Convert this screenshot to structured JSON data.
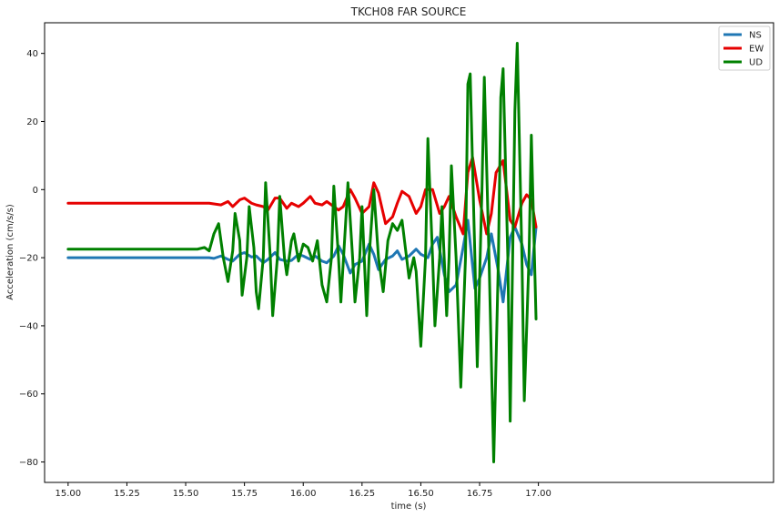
{
  "chart_data": {
    "type": "line",
    "title": "TKCH08 FAR SOURCE",
    "xlabel": "time (s)",
    "ylabel": "Acceleration (cm/s/s)",
    "xlim": [
      14.9,
      18.0
    ],
    "ylim": [
      -86,
      49
    ],
    "xticks": [
      15.0,
      15.25,
      15.5,
      15.75,
      16.0,
      16.25,
      16.5,
      16.75,
      17.0
    ],
    "xtick_labels": [
      "15.00",
      "15.25",
      "15.50",
      "15.75",
      "16.00",
      "16.25",
      "16.50",
      "16.75",
      "17.00"
    ],
    "yticks": [
      -80,
      -60,
      -40,
      -20,
      0,
      20,
      40
    ],
    "ytick_labels": [
      "−80",
      "−60",
      "−40",
      "−20",
      "0",
      "20",
      "40"
    ],
    "grid": false,
    "legend_position": "top-right",
    "series": [
      {
        "name": "NS",
        "color": "#1f77b4",
        "points": [
          [
            15.0,
            -20.0
          ],
          [
            15.1,
            -20.0
          ],
          [
            15.2,
            -20.0
          ],
          [
            15.3,
            -20.0
          ],
          [
            15.4,
            -20.0
          ],
          [
            15.5,
            -20.0
          ],
          [
            15.6,
            -20.0
          ],
          [
            15.62,
            -20.2
          ],
          [
            15.65,
            -19.5
          ],
          [
            15.68,
            -20.5
          ],
          [
            15.7,
            -21.0
          ],
          [
            15.73,
            -19.0
          ],
          [
            15.75,
            -18.5
          ],
          [
            15.78,
            -19.8
          ],
          [
            15.8,
            -19.5
          ],
          [
            15.83,
            -21.5
          ],
          [
            15.85,
            -20.5
          ],
          [
            15.88,
            -18.5
          ],
          [
            15.9,
            -20.5
          ],
          [
            15.93,
            -21.0
          ],
          [
            15.95,
            -20.8
          ],
          [
            15.98,
            -19.0
          ],
          [
            16.0,
            -19.5
          ],
          [
            16.03,
            -20.5
          ],
          [
            16.05,
            -19.5
          ],
          [
            16.08,
            -21.0
          ],
          [
            16.1,
            -21.5
          ],
          [
            16.13,
            -19.5
          ],
          [
            16.15,
            -16.5
          ],
          [
            16.17,
            -19.0
          ],
          [
            16.2,
            -24.5
          ],
          [
            16.22,
            -22.0
          ],
          [
            16.25,
            -21.0
          ],
          [
            16.28,
            -16.0
          ],
          [
            16.3,
            -19.0
          ],
          [
            16.32,
            -23.5
          ],
          [
            16.35,
            -20.5
          ],
          [
            16.38,
            -19.5
          ],
          [
            16.4,
            -18.0
          ],
          [
            16.42,
            -20.5
          ],
          [
            16.45,
            -19.5
          ],
          [
            16.48,
            -17.5
          ],
          [
            16.5,
            -19.0
          ],
          [
            16.53,
            -20.0
          ],
          [
            16.55,
            -16.0
          ],
          [
            16.57,
            -14.0
          ],
          [
            16.6,
            -25.0
          ],
          [
            16.62,
            -30.0
          ],
          [
            16.65,
            -28.0
          ],
          [
            16.68,
            -17.0
          ],
          [
            16.7,
            -9.0
          ],
          [
            16.73,
            -29.0
          ],
          [
            16.75,
            -26.0
          ],
          [
            16.78,
            -20.0
          ],
          [
            16.8,
            -13.0
          ],
          [
            16.83,
            -24.0
          ],
          [
            16.85,
            -33.0
          ],
          [
            16.88,
            -14.0
          ],
          [
            16.9,
            -11.0
          ],
          [
            16.93,
            -16.0
          ],
          [
            16.95,
            -22.0
          ],
          [
            16.97,
            -25.0
          ],
          [
            16.99,
            -11.0
          ]
        ]
      },
      {
        "name": "EW",
        "color": "#e60000",
        "points": [
          [
            15.0,
            -4.0
          ],
          [
            15.1,
            -4.0
          ],
          [
            15.2,
            -4.0
          ],
          [
            15.3,
            -4.0
          ],
          [
            15.4,
            -4.0
          ],
          [
            15.5,
            -4.0
          ],
          [
            15.6,
            -4.0
          ],
          [
            15.65,
            -4.5
          ],
          [
            15.68,
            -3.5
          ],
          [
            15.7,
            -5.0
          ],
          [
            15.73,
            -3.0
          ],
          [
            15.75,
            -2.5
          ],
          [
            15.78,
            -4.0
          ],
          [
            15.8,
            -4.5
          ],
          [
            15.83,
            -5.0
          ],
          [
            15.85,
            -6.0
          ],
          [
            15.88,
            -2.5
          ],
          [
            15.9,
            -2.5
          ],
          [
            15.93,
            -5.5
          ],
          [
            15.95,
            -4.0
          ],
          [
            15.98,
            -5.0
          ],
          [
            16.0,
            -4.0
          ],
          [
            16.03,
            -2.0
          ],
          [
            16.05,
            -4.0
          ],
          [
            16.08,
            -4.5
          ],
          [
            16.1,
            -3.5
          ],
          [
            16.13,
            -5.0
          ],
          [
            16.15,
            -6.0
          ],
          [
            16.17,
            -5.0
          ],
          [
            16.2,
            0.0
          ],
          [
            16.22,
            -2.5
          ],
          [
            16.25,
            -7.0
          ],
          [
            16.28,
            -5.0
          ],
          [
            16.3,
            2.0
          ],
          [
            16.32,
            -1.0
          ],
          [
            16.35,
            -10.0
          ],
          [
            16.38,
            -8.0
          ],
          [
            16.4,
            -4.0
          ],
          [
            16.42,
            -0.5
          ],
          [
            16.45,
            -2.0
          ],
          [
            16.48,
            -7.0
          ],
          [
            16.5,
            -5.0
          ],
          [
            16.52,
            0.0
          ],
          [
            16.55,
            0.0
          ],
          [
            16.58,
            -7.0
          ],
          [
            16.6,
            -5.0
          ],
          [
            16.62,
            -2.0
          ],
          [
            16.65,
            -8.0
          ],
          [
            16.68,
            -13.0
          ],
          [
            16.7,
            5.0
          ],
          [
            16.72,
            9.5
          ],
          [
            16.75,
            -3.0
          ],
          [
            16.78,
            -13.0
          ],
          [
            16.8,
            -7.0
          ],
          [
            16.82,
            5.0
          ],
          [
            16.85,
            8.5
          ],
          [
            16.88,
            -9.0
          ],
          [
            16.9,
            -11.0
          ],
          [
            16.93,
            -4.0
          ],
          [
            16.95,
            -1.5
          ],
          [
            16.97,
            -3.0
          ],
          [
            16.99,
            -11.0
          ]
        ]
      },
      {
        "name": "UD",
        "color": "#008000",
        "points": [
          [
            15.0,
            -17.5
          ],
          [
            15.1,
            -17.5
          ],
          [
            15.2,
            -17.5
          ],
          [
            15.3,
            -17.5
          ],
          [
            15.4,
            -17.5
          ],
          [
            15.5,
            -17.5
          ],
          [
            15.55,
            -17.5
          ],
          [
            15.58,
            -17.0
          ],
          [
            15.6,
            -18.0
          ],
          [
            15.62,
            -13.0
          ],
          [
            15.64,
            -10.0
          ],
          [
            15.66,
            -20.0
          ],
          [
            15.68,
            -27.0
          ],
          [
            15.7,
            -18.0
          ],
          [
            15.71,
            -7.0
          ],
          [
            15.73,
            -15.0
          ],
          [
            15.74,
            -31.0
          ],
          [
            15.76,
            -20.0
          ],
          [
            15.77,
            -5.0
          ],
          [
            15.79,
            -17.0
          ],
          [
            15.8,
            -30.0
          ],
          [
            15.81,
            -35.0
          ],
          [
            15.83,
            -20.0
          ],
          [
            15.84,
            2.0
          ],
          [
            15.86,
            -20.0
          ],
          [
            15.87,
            -37.0
          ],
          [
            15.89,
            -20.0
          ],
          [
            15.9,
            -2.0
          ],
          [
            15.92,
            -20.0
          ],
          [
            15.93,
            -25.0
          ],
          [
            15.95,
            -15.0
          ],
          [
            15.96,
            -13.0
          ],
          [
            15.98,
            -21.0
          ],
          [
            16.0,
            -16.0
          ],
          [
            16.02,
            -17.0
          ],
          [
            16.04,
            -21.0
          ],
          [
            16.06,
            -15.0
          ],
          [
            16.08,
            -28.0
          ],
          [
            16.1,
            -33.0
          ],
          [
            16.12,
            -20.0
          ],
          [
            16.13,
            1.0
          ],
          [
            16.15,
            -20.0
          ],
          [
            16.16,
            -33.0
          ],
          [
            16.18,
            -10.0
          ],
          [
            16.19,
            2.0
          ],
          [
            16.21,
            -20.0
          ],
          [
            16.22,
            -33.0
          ],
          [
            16.24,
            -20.0
          ],
          [
            16.25,
            -5.0
          ],
          [
            16.27,
            -37.0
          ],
          [
            16.28,
            -20.0
          ],
          [
            16.3,
            0.0
          ],
          [
            16.32,
            -20.0
          ],
          [
            16.34,
            -30.0
          ],
          [
            16.36,
            -15.0
          ],
          [
            16.38,
            -10.0
          ],
          [
            16.4,
            -12.0
          ],
          [
            16.42,
            -9.0
          ],
          [
            16.45,
            -26.0
          ],
          [
            16.47,
            -20.0
          ],
          [
            16.48,
            -24.0
          ],
          [
            16.5,
            -46.0
          ],
          [
            16.52,
            -20.0
          ],
          [
            16.53,
            15.0
          ],
          [
            16.55,
            -20.0
          ],
          [
            16.56,
            -40.0
          ],
          [
            16.58,
            -20.0
          ],
          [
            16.59,
            -5.0
          ],
          [
            16.61,
            -37.0
          ],
          [
            16.62,
            -20.0
          ],
          [
            16.63,
            7.0
          ],
          [
            16.65,
            -20.0
          ],
          [
            16.67,
            -58.0
          ],
          [
            16.69,
            -20.0
          ],
          [
            16.7,
            31.0
          ],
          [
            16.71,
            34.0
          ],
          [
            16.73,
            -20.0
          ],
          [
            16.74,
            -52.0
          ],
          [
            16.76,
            0.0
          ],
          [
            16.77,
            33.0
          ],
          [
            16.79,
            -20.0
          ],
          [
            16.81,
            -80.0
          ],
          [
            16.83,
            -20.0
          ],
          [
            16.84,
            27.0
          ],
          [
            16.85,
            35.5
          ],
          [
            16.87,
            -20.0
          ],
          [
            16.88,
            -68.0
          ],
          [
            16.9,
            23.0
          ],
          [
            16.91,
            43.0
          ],
          [
            16.93,
            -20.0
          ],
          [
            16.94,
            -62.0
          ],
          [
            16.96,
            -20.0
          ],
          [
            16.97,
            16.0
          ],
          [
            16.99,
            -38.0
          ]
        ]
      }
    ]
  }
}
